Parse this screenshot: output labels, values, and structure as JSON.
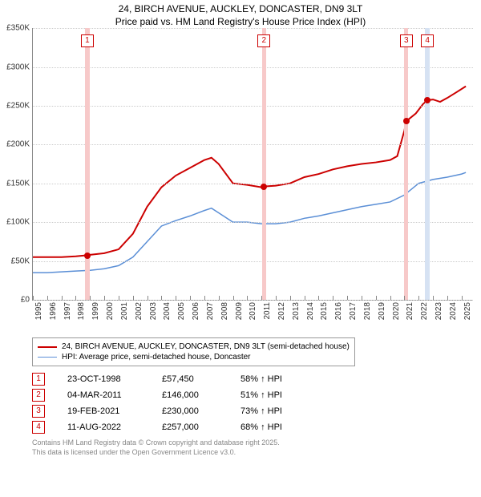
{
  "title_line1": "24, BIRCH AVENUE, AUCKLEY, DONCASTER, DN9 3LT",
  "title_line2": "Price paid vs. HM Land Registry's House Price Index (HPI)",
  "chart": {
    "type": "line",
    "background_color": "#ffffff",
    "grid_color": "#cccccc",
    "x_years": [
      1995,
      1996,
      1997,
      1998,
      1999,
      2000,
      2001,
      2002,
      2003,
      2004,
      2005,
      2006,
      2007,
      2008,
      2009,
      2010,
      2011,
      2012,
      2013,
      2014,
      2015,
      2016,
      2017,
      2018,
      2019,
      2020,
      2021,
      2022,
      2023,
      2024,
      2025
    ],
    "xlim": [
      1995,
      2025.8
    ],
    "ylim": [
      0,
      350000
    ],
    "ytick_step": 50000,
    "yticks": [
      0,
      50000,
      100000,
      150000,
      200000,
      250000,
      300000,
      350000
    ],
    "ytick_labels": [
      "£0",
      "£50K",
      "£100K",
      "£150K",
      "£200K",
      "£250K",
      "£300K",
      "£350K"
    ],
    "vbands": [
      {
        "x": 1998.81,
        "width_years": 0.3,
        "color": "#f7c9c9"
      },
      {
        "x": 2011.17,
        "width_years": 0.3,
        "color": "#f7c9c9"
      },
      {
        "x": 2021.13,
        "width_years": 0.3,
        "color": "#f7c9c9"
      },
      {
        "x": 2022.61,
        "width_years": 0.3,
        "color": "#d6e2f3"
      }
    ],
    "series": [
      {
        "name": "property",
        "label": "24, BIRCH AVENUE, AUCKLEY, DONCASTER, DN9 3LT (semi-detached house)",
        "color": "#cc0000",
        "width": 2,
        "points": [
          [
            1995.0,
            55000
          ],
          [
            1996.0,
            55000
          ],
          [
            1997.0,
            55000
          ],
          [
            1998.0,
            56000
          ],
          [
            1998.81,
            57450
          ],
          [
            1999.0,
            58000
          ],
          [
            2000.0,
            60000
          ],
          [
            2001.0,
            65000
          ],
          [
            2002.0,
            85000
          ],
          [
            2003.0,
            120000
          ],
          [
            2004.0,
            145000
          ],
          [
            2005.0,
            160000
          ],
          [
            2006.0,
            170000
          ],
          [
            2007.0,
            180000
          ],
          [
            2007.5,
            183000
          ],
          [
            2008.0,
            175000
          ],
          [
            2009.0,
            150000
          ],
          [
            2010.0,
            148000
          ],
          [
            2011.0,
            145000
          ],
          [
            2011.17,
            146000
          ],
          [
            2012.0,
            147000
          ],
          [
            2013.0,
            150000
          ],
          [
            2014.0,
            158000
          ],
          [
            2015.0,
            162000
          ],
          [
            2016.0,
            168000
          ],
          [
            2017.0,
            172000
          ],
          [
            2018.0,
            175000
          ],
          [
            2019.0,
            177000
          ],
          [
            2020.0,
            180000
          ],
          [
            2020.5,
            185000
          ],
          [
            2021.0,
            218000
          ],
          [
            2021.13,
            230000
          ],
          [
            2021.8,
            240000
          ],
          [
            2022.3,
            252000
          ],
          [
            2022.61,
            257000
          ],
          [
            2023.0,
            258000
          ],
          [
            2023.5,
            255000
          ],
          [
            2024.0,
            260000
          ],
          [
            2024.7,
            268000
          ],
          [
            2025.3,
            275000
          ]
        ]
      },
      {
        "name": "hpi",
        "label": "HPI: Average price, semi-detached house, Doncaster",
        "color": "#5b8fd6",
        "width": 1.5,
        "points": [
          [
            1995.0,
            35000
          ],
          [
            1996.0,
            35000
          ],
          [
            1997.0,
            36000
          ],
          [
            1998.0,
            37000
          ],
          [
            1999.0,
            38000
          ],
          [
            2000.0,
            40000
          ],
          [
            2001.0,
            44000
          ],
          [
            2002.0,
            55000
          ],
          [
            2003.0,
            75000
          ],
          [
            2004.0,
            95000
          ],
          [
            2005.0,
            102000
          ],
          [
            2006.0,
            108000
          ],
          [
            2007.0,
            115000
          ],
          [
            2007.5,
            118000
          ],
          [
            2008.0,
            112000
          ],
          [
            2009.0,
            100000
          ],
          [
            2010.0,
            100000
          ],
          [
            2011.0,
            98000
          ],
          [
            2012.0,
            98000
          ],
          [
            2013.0,
            100000
          ],
          [
            2014.0,
            105000
          ],
          [
            2015.0,
            108000
          ],
          [
            2016.0,
            112000
          ],
          [
            2017.0,
            116000
          ],
          [
            2018.0,
            120000
          ],
          [
            2019.0,
            123000
          ],
          [
            2020.0,
            126000
          ],
          [
            2021.0,
            135000
          ],
          [
            2022.0,
            150000
          ],
          [
            2023.0,
            155000
          ],
          [
            2024.0,
            158000
          ],
          [
            2025.0,
            162000
          ],
          [
            2025.3,
            164000
          ]
        ]
      }
    ],
    "sale_markers": [
      {
        "n": "1",
        "x": 1998.81,
        "y": 57450,
        "color": "#cc0000"
      },
      {
        "n": "2",
        "x": 2011.17,
        "y": 146000,
        "color": "#cc0000"
      },
      {
        "n": "3",
        "x": 2021.13,
        "y": 230000,
        "color": "#cc0000"
      },
      {
        "n": "4",
        "x": 2022.61,
        "y": 257000,
        "color": "#cc0000"
      }
    ]
  },
  "legend": {
    "items": [
      {
        "color": "#cc0000",
        "label": "24, BIRCH AVENUE, AUCKLEY, DONCASTER, DN9 3LT (semi-detached house)",
        "width": 2
      },
      {
        "color": "#5b8fd6",
        "label": "HPI: Average price, semi-detached house, Doncaster",
        "width": 1.5
      }
    ]
  },
  "sales_table": [
    {
      "n": "1",
      "date": "23-OCT-1998",
      "price": "£57,450",
      "pct": "58% ↑ HPI"
    },
    {
      "n": "2",
      "date": "04-MAR-2011",
      "price": "£146,000",
      "pct": "51% ↑ HPI"
    },
    {
      "n": "3",
      "date": "19-FEB-2021",
      "price": "£230,000",
      "pct": "73% ↑ HPI"
    },
    {
      "n": "4",
      "date": "11-AUG-2022",
      "price": "£257,000",
      "pct": "68% ↑ HPI"
    }
  ],
  "footer_line1": "Contains HM Land Registry data © Crown copyright and database right 2025.",
  "footer_line2": "This data is licensed under the Open Government Licence v3.0."
}
